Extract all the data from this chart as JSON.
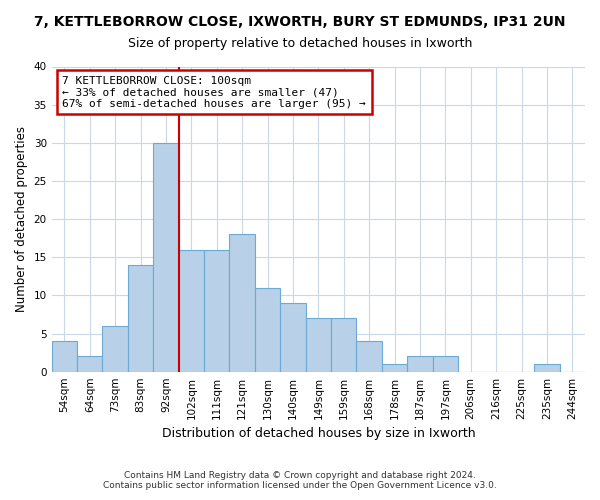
{
  "title": "7, KETTLEBORROW CLOSE, IXWORTH, BURY ST EDMUNDS, IP31 2UN",
  "subtitle": "Size of property relative to detached houses in Ixworth",
  "xlabel": "Distribution of detached houses by size in Ixworth",
  "ylabel": "Number of detached properties",
  "bar_labels": [
    "54sqm",
    "64sqm",
    "73sqm",
    "83sqm",
    "92sqm",
    "102sqm",
    "111sqm",
    "121sqm",
    "130sqm",
    "140sqm",
    "149sqm",
    "159sqm",
    "168sqm",
    "178sqm",
    "187sqm",
    "197sqm",
    "206sqm",
    "216sqm",
    "225sqm",
    "235sqm",
    "244sqm"
  ],
  "bar_values": [
    4,
    2,
    6,
    14,
    30,
    16,
    16,
    18,
    11,
    9,
    7,
    7,
    4,
    1,
    2,
    2,
    0,
    0,
    0,
    1,
    0
  ],
  "bar_color": "#b8d0e8",
  "bar_edge_color": "#6aaad4",
  "grid_color": "#c8d8e8",
  "background_color": "#ffffff",
  "fig_background_color": "#ffffff",
  "annotation_text": "7 KETTLEBORROW CLOSE: 100sqm\n← 33% of detached houses are smaller (47)\n67% of semi-detached houses are larger (95) →",
  "annotation_box_color": "#ffffff",
  "annotation_box_edge_color": "#cc0000",
  "vline_color": "#cc0000",
  "ylim": [
    0,
    40
  ],
  "yticks": [
    0,
    5,
    10,
    15,
    20,
    25,
    30,
    35,
    40
  ],
  "footer": "Contains HM Land Registry data © Crown copyright and database right 2024.\nContains public sector information licensed under the Open Government Licence v3.0.",
  "title_fontsize": 10,
  "subtitle_fontsize": 9,
  "xlabel_fontsize": 9,
  "ylabel_fontsize": 8.5,
  "tick_fontsize": 7.5,
  "footer_fontsize": 6.5
}
